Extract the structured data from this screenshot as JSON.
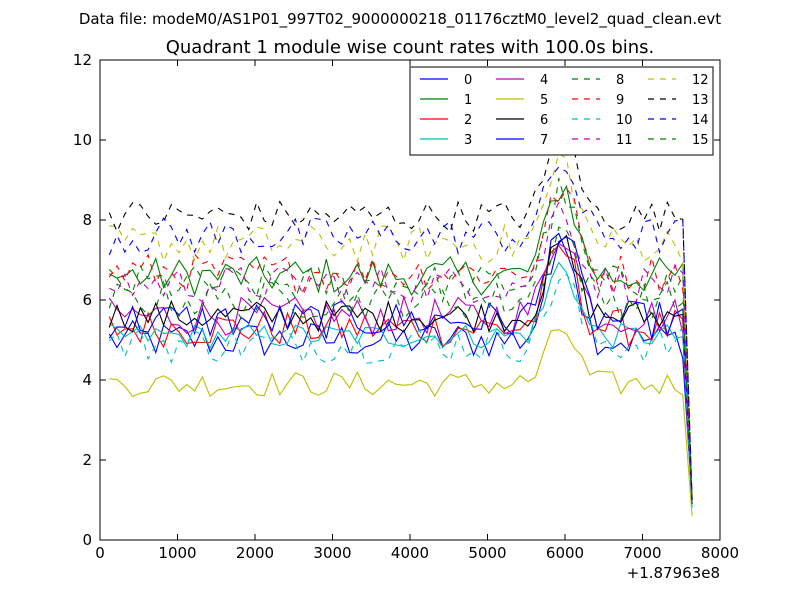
{
  "figure": {
    "suptitle": "Data file: modeM0/AS1P01_997T02_9000000218_01176cztM0_level2_quad_clean.evt"
  },
  "chart_data": {
    "type": "line",
    "title": "Quadrant 1 module wise count rates with 100.0s bins.",
    "xlabel": "",
    "ylabel": "",
    "xlim": [
      0,
      8000
    ],
    "ylim": [
      0,
      12
    ],
    "x_offset_label": "+1.87963e8",
    "xticks": [
      0,
      1000,
      2000,
      3000,
      4000,
      5000,
      6000,
      7000,
      8000
    ],
    "xtick_labels": [
      "0",
      "1000",
      "2000",
      "3000",
      "4000",
      "5000",
      "6000",
      "7000",
      "8000"
    ],
    "yticks": [
      0,
      2,
      4,
      6,
      8,
      10,
      12
    ],
    "ytick_labels": [
      "0",
      "2",
      "4",
      "6",
      "8",
      "10",
      "12"
    ],
    "legend_position": "upper-right",
    "legend_ncol": 4,
    "x_start": 120,
    "x_step": 100,
    "x_final": 7640,
    "series": [
      {
        "name": "0",
        "color": "#0000ff",
        "dashed": false,
        "base": 5.0,
        "amp": 0.3,
        "peak": 2.8,
        "end": 1.0
      },
      {
        "name": "1",
        "color": "#008000",
        "dashed": false,
        "base": 6.6,
        "amp": 0.3,
        "peak": 2.3,
        "end": 1.0
      },
      {
        "name": "2",
        "color": "#ff0000",
        "dashed": false,
        "base": 5.3,
        "amp": 0.3,
        "peak": 2.0,
        "end": 0.9
      },
      {
        "name": "3",
        "color": "#00bfbf",
        "dashed": false,
        "base": 5.1,
        "amp": 0.2,
        "peak": 1.8,
        "end": 0.8
      },
      {
        "name": "4",
        "color": "#bf00bf",
        "dashed": false,
        "base": 5.6,
        "amp": 0.3,
        "peak": 2.2,
        "end": 0.9
      },
      {
        "name": "5",
        "color": "#bfbf00",
        "dashed": false,
        "base": 3.9,
        "amp": 0.2,
        "peak": 1.4,
        "end": 0.6
      },
      {
        "name": "6",
        "color": "#000000",
        "dashed": false,
        "base": 5.6,
        "amp": 0.25,
        "peak": 1.8,
        "end": 0.9
      },
      {
        "name": "7",
        "color": "#0000ff",
        "dashed": false,
        "base": 5.5,
        "amp": 0.3,
        "peak": 2.2,
        "end": 1.0
      },
      {
        "name": "8",
        "color": "#008000",
        "dashed": true,
        "base": 6.4,
        "amp": 0.3,
        "peak": 2.3,
        "end": 1.0
      },
      {
        "name": "9",
        "color": "#ff0000",
        "dashed": true,
        "base": 6.7,
        "amp": 0.3,
        "peak": 2.1,
        "end": 1.0
      },
      {
        "name": "10",
        "color": "#00bfbf",
        "dashed": true,
        "base": 4.9,
        "amp": 0.3,
        "peak": 1.7,
        "end": 0.8
      },
      {
        "name": "11",
        "color": "#bf00bf",
        "dashed": true,
        "base": 6.4,
        "amp": 0.3,
        "peak": 2.0,
        "end": 0.9
      },
      {
        "name": "12",
        "color": "#bfbf00",
        "dashed": true,
        "base": 7.4,
        "amp": 0.3,
        "peak": 2.1,
        "end": 1.0
      },
      {
        "name": "13",
        "color": "#000000",
        "dashed": true,
        "base": 8.1,
        "amp": 0.25,
        "peak": 2.0,
        "end": 1.0
      },
      {
        "name": "14",
        "color": "#0000ff",
        "dashed": true,
        "base": 7.6,
        "amp": 0.3,
        "peak": 1.9,
        "end": 1.0
      },
      {
        "name": "15",
        "color": "#008000",
        "dashed": true,
        "base": 6.0,
        "amp": 0.3,
        "peak": 1.8,
        "end": 0.9
      }
    ]
  }
}
